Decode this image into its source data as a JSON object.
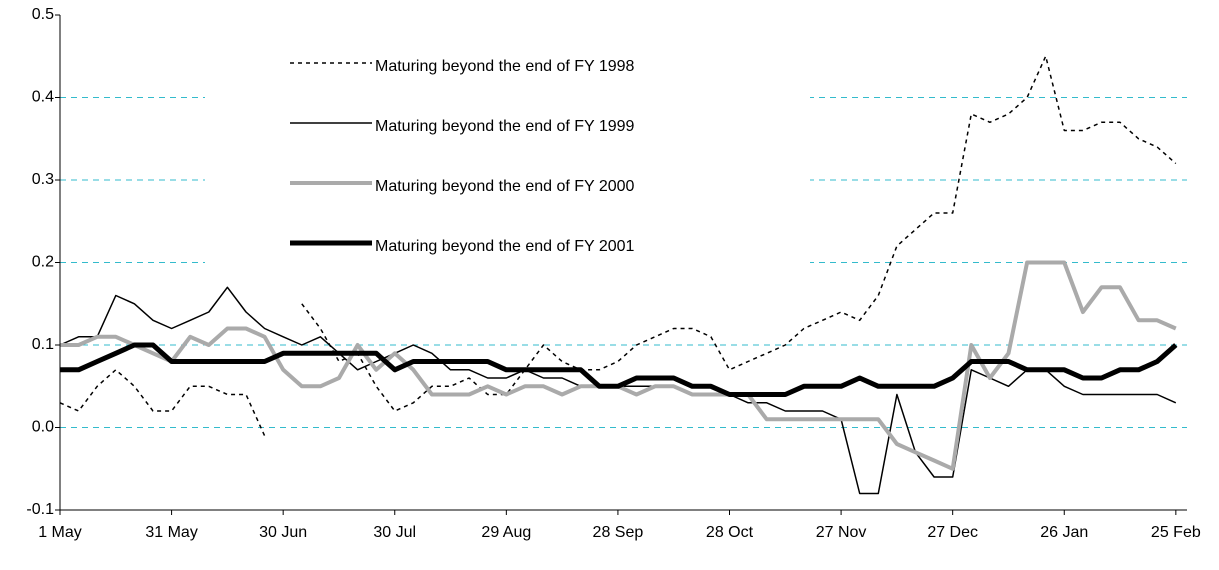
{
  "chart_data": {
    "type": "line",
    "x": [
      0,
      5,
      10,
      15,
      20,
      25,
      30,
      35,
      40,
      45,
      50,
      55,
      60,
      65,
      70,
      75,
      80,
      85,
      90,
      95,
      100,
      105,
      110,
      115,
      120,
      125,
      130,
      135,
      140,
      145,
      150,
      155,
      160,
      165,
      170,
      175,
      180,
      185,
      190,
      195,
      200,
      205,
      210,
      215,
      220,
      225,
      230,
      235,
      240,
      245,
      250,
      255,
      260,
      265,
      270,
      275,
      280,
      285,
      290,
      295,
      300
    ],
    "xlim": [
      0,
      303
    ],
    "xticks": [
      {
        "value": 0,
        "label": "1 May"
      },
      {
        "value": 30,
        "label": "31 May"
      },
      {
        "value": 60,
        "label": "30 Jun"
      },
      {
        "value": 90,
        "label": "30 Jul"
      },
      {
        "value": 120,
        "label": "29 Aug"
      },
      {
        "value": 150,
        "label": "28 Sep"
      },
      {
        "value": 180,
        "label": "28 Oct"
      },
      {
        "value": 210,
        "label": "27 Nov"
      },
      {
        "value": 240,
        "label": "27 Dec"
      },
      {
        "value": 270,
        "label": "26 Jan"
      },
      {
        "value": 300,
        "label": "25 Feb"
      }
    ],
    "ylim": [
      -0.1,
      0.5
    ],
    "yticks": [
      -0.1,
      {
        "value": 0,
        "label": "0.0"
      },
      0.1,
      0.2,
      0.3,
      0.4,
      0.5
    ],
    "grid": true,
    "series": [
      {
        "name": "Maturing beyond the end of FY 1998",
        "color": "#000000",
        "width": 1.5,
        "dash": "4 4",
        "values": [
          0.03,
          0.02,
          0.05,
          0.07,
          0.05,
          0.02,
          0.02,
          0.05,
          0.05,
          0.04,
          0.04,
          -0.01,
          null,
          0.15,
          0.12,
          0.08,
          0.09,
          0.05,
          0.02,
          0.03,
          0.05,
          0.05,
          0.06,
          0.04,
          0.04,
          0.07,
          0.1,
          0.08,
          0.07,
          0.07,
          0.08,
          0.1,
          0.11,
          0.12,
          0.12,
          0.11,
          0.07,
          0.08,
          0.09,
          0.1,
          0.12,
          0.13,
          0.14,
          0.13,
          0.16,
          0.22,
          0.24,
          0.26,
          0.26,
          0.38,
          0.37,
          0.38,
          0.4,
          0.45,
          0.36,
          0.36,
          0.37,
          0.37,
          0.35,
          0.34,
          0.32
        ]
      },
      {
        "name": "Maturing beyond the end of FY 1999",
        "color": "#000000",
        "width": 1.5,
        "dash": "none",
        "values": [
          0.1,
          0.11,
          0.11,
          0.16,
          0.15,
          0.13,
          0.12,
          0.13,
          0.14,
          0.17,
          0.14,
          0.12,
          0.11,
          0.1,
          0.11,
          0.09,
          0.07,
          0.08,
          0.09,
          0.1,
          0.09,
          0.07,
          0.07,
          0.06,
          0.06,
          0.07,
          0.06,
          0.06,
          0.05,
          0.05,
          0.05,
          0.05,
          0.05,
          0.05,
          0.04,
          0.04,
          0.04,
          0.03,
          0.03,
          0.02,
          0.02,
          0.02,
          0.01,
          -0.08,
          -0.08,
          0.04,
          -0.03,
          -0.06,
          -0.06,
          0.07,
          0.06,
          0.05,
          0.07,
          0.07,
          0.05,
          0.04,
          0.04,
          0.04,
          0.04,
          0.04,
          0.03
        ]
      },
      {
        "name": "Maturing beyond the end of FY 2000",
        "color": "#aaaaaa",
        "width": 4,
        "dash": "none",
        "values": [
          0.1,
          0.1,
          0.11,
          0.11,
          0.1,
          0.09,
          0.08,
          0.11,
          0.1,
          0.12,
          0.12,
          0.11,
          0.07,
          0.05,
          0.05,
          0.06,
          0.1,
          0.07,
          0.09,
          0.07,
          0.04,
          0.04,
          0.04,
          0.05,
          0.04,
          0.05,
          0.05,
          0.04,
          0.05,
          0.05,
          0.05,
          0.04,
          0.05,
          0.05,
          0.04,
          0.04,
          0.04,
          0.04,
          0.01,
          0.01,
          0.01,
          0.01,
          0.01,
          0.01,
          0.01,
          -0.02,
          -0.03,
          -0.04,
          -0.05,
          0.1,
          0.06,
          0.09,
          0.2,
          0.2,
          0.2,
          0.14,
          0.17,
          0.17,
          0.13,
          0.13,
          0.12
        ]
      },
      {
        "name": "Maturing beyond the end of FY 2001",
        "color": "#000000",
        "width": 5,
        "dash": "none",
        "values": [
          0.07,
          0.07,
          0.08,
          0.09,
          0.1,
          0.1,
          0.08,
          0.08,
          0.08,
          0.08,
          0.08,
          0.08,
          0.09,
          0.09,
          0.09,
          0.09,
          0.09,
          0.09,
          0.07,
          0.08,
          0.08,
          0.08,
          0.08,
          0.08,
          0.07,
          0.07,
          0.07,
          0.07,
          0.07,
          0.05,
          0.05,
          0.06,
          0.06,
          0.06,
          0.05,
          0.05,
          0.04,
          0.04,
          0.04,
          0.04,
          0.05,
          0.05,
          0.05,
          0.06,
          0.05,
          0.05,
          0.05,
          0.05,
          0.06,
          0.08,
          0.08,
          0.08,
          0.07,
          0.07,
          0.07,
          0.06,
          0.06,
          0.07,
          0.07,
          0.08,
          0.1
        ]
      }
    ]
  }
}
